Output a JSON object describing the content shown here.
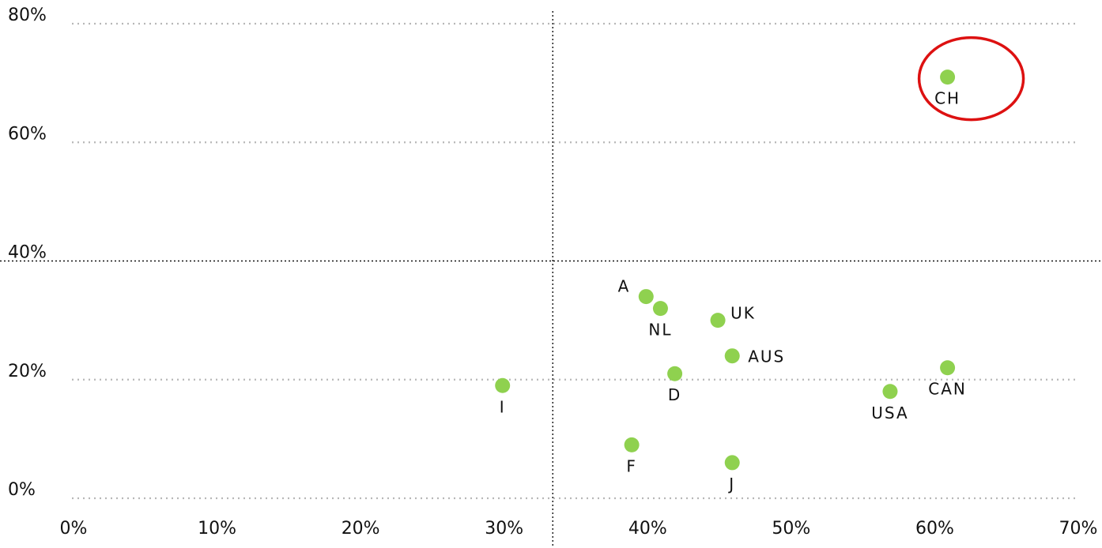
{
  "chart_data": {
    "type": "scatter",
    "title": "",
    "xlabel": "",
    "ylabel": "",
    "xlim": [
      0,
      70
    ],
    "ylim": [
      0,
      80
    ],
    "x_ticks": [
      0,
      10,
      20,
      30,
      40,
      50,
      60,
      70
    ],
    "y_ticks": [
      0,
      20,
      40,
      60,
      80
    ],
    "x_tick_labels": [
      "0%",
      "10%",
      "20%",
      "30%",
      "40%",
      "50%",
      "60%",
      "70%"
    ],
    "y_tick_labels": [
      "0%",
      "20%",
      "40%",
      "60%",
      "80%"
    ],
    "grid": "horizontal dotted",
    "divider_lines": {
      "vertical_x": 33.5,
      "horizontal_y": 40
    },
    "colors": {
      "point": "#8fd14f",
      "grid": "#b7b7b7",
      "divider": "#111111",
      "highlight": "#dd1111",
      "text": "#111111"
    },
    "points": [
      {
        "label": "CH",
        "x": 61,
        "y": 71,
        "label_position": "below",
        "highlighted": true
      },
      {
        "label": "A",
        "x": 40,
        "y": 34,
        "label_position": "upper-left"
      },
      {
        "label": "NL",
        "x": 41,
        "y": 32,
        "label_position": "below"
      },
      {
        "label": "UK",
        "x": 45,
        "y": 30,
        "label_position": "upper-right"
      },
      {
        "label": "AUS",
        "x": 46,
        "y": 24,
        "label_position": "right"
      },
      {
        "label": "D",
        "x": 42,
        "y": 21,
        "label_position": "below"
      },
      {
        "label": "CAN",
        "x": 61,
        "y": 22,
        "label_position": "below"
      },
      {
        "label": "USA",
        "x": 57,
        "y": 18,
        "label_position": "below"
      },
      {
        "label": "I",
        "x": 30,
        "y": 19,
        "label_position": "below"
      },
      {
        "label": "F",
        "x": 39,
        "y": 9,
        "label_position": "below"
      },
      {
        "label": "J",
        "x": 46,
        "y": 6,
        "label_position": "below"
      }
    ]
  }
}
